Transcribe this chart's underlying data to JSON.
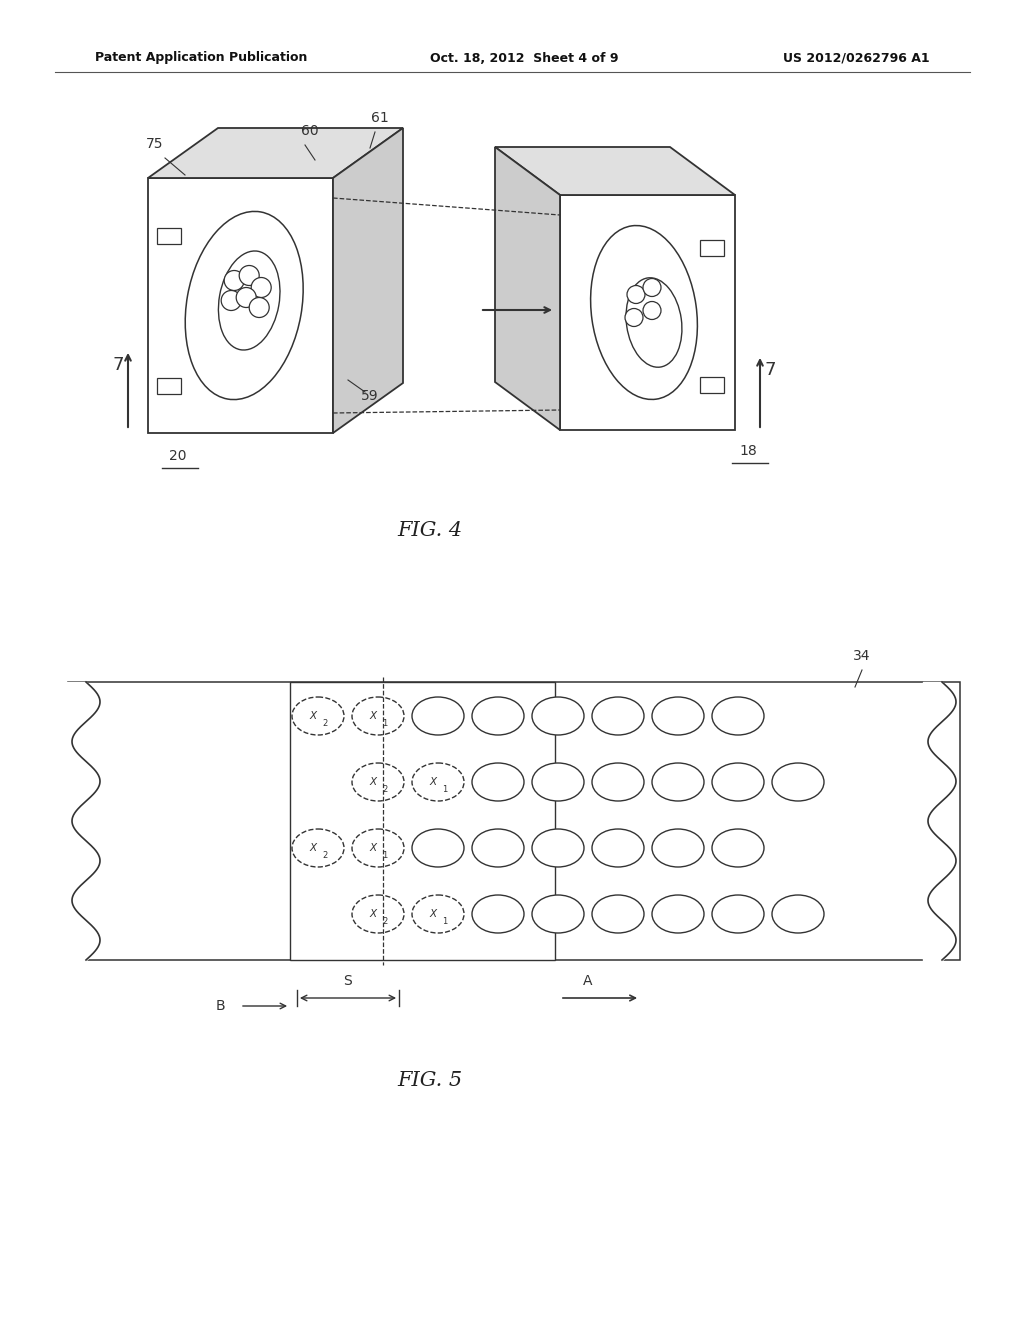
{
  "header_left": "Patent Application Publication",
  "header_mid": "Oct. 18, 2012  Sheet 4 of 9",
  "header_right": "US 2012/0262796 A1",
  "fig4_caption": "FIG. 4",
  "fig5_caption": "FIG. 5",
  "bg_color": "#ffffff",
  "line_color": "#333333",
  "gray_light": "#e0e0e0",
  "gray_mid": "#cccccc"
}
